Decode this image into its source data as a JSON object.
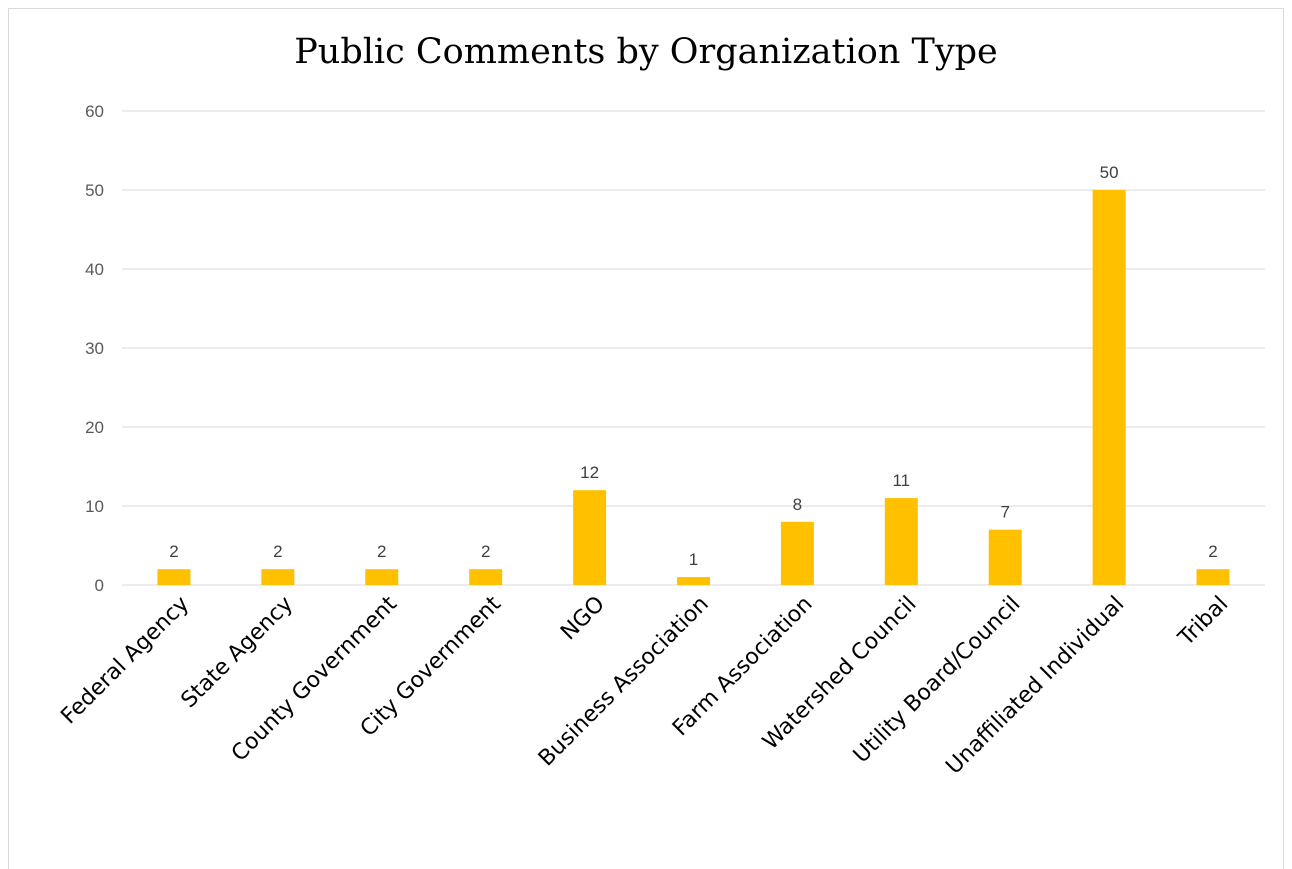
{
  "chart_data": {
    "type": "bar",
    "title": "Public Comments by Organization Type",
    "xlabel": "",
    "ylabel": "",
    "categories": [
      "Federal Agency",
      "State Agency",
      "County Government",
      "City Government",
      "NGO",
      "Business Association",
      "Farm Association",
      "Watershed Council",
      "Utility Board/Council",
      "Unaffiliated Individual",
      "Tribal"
    ],
    "values": [
      2,
      2,
      2,
      2,
      12,
      1,
      8,
      11,
      7,
      50,
      2
    ],
    "ylim": [
      0,
      60
    ],
    "yticks": [
      0,
      10,
      20,
      30,
      40,
      50,
      60
    ],
    "grid": true,
    "legend": "none",
    "bar_color": "#FFC000",
    "gridline_color": "#d9d9d9",
    "data_labels": true
  }
}
